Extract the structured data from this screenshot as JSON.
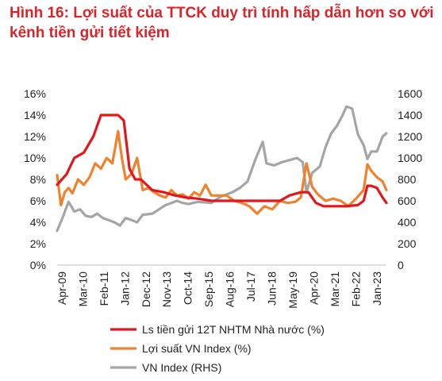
{
  "title_line1": "Hình 16: Lợi suất của TTCK duy trì tính hấp dẫn hơn so với",
  "title_line2": "kênh tiền gửi tiết kiệm",
  "chart_data": {
    "type": "line",
    "title": "Hình 16: Lợi suất của TTCK duy trì tính hấp dẫn hơn so với kênh tiền gửi tiết kiệm",
    "x_tick_labels": [
      "Apr-09",
      "Mar-10",
      "Feb-11",
      "Jan-12",
      "Dec-12",
      "Nov-13",
      "Oct-14",
      "Sep-15",
      "Aug-16",
      "Jul-17",
      "Jun-18",
      "May-19",
      "Apr-20",
      "Mar-21",
      "Feb-22",
      "Jan-23"
    ],
    "x_range": [
      "2009-04",
      "2023-09"
    ],
    "y_left": {
      "ylim": [
        0,
        16
      ],
      "ticks": [
        "0%",
        "2%",
        "4%",
        "6%",
        "8%",
        "10%",
        "12%",
        "14%",
        "16%"
      ]
    },
    "y_right": {
      "ylim": [
        0,
        1600
      ],
      "ticks": [
        "0",
        "200",
        "400",
        "600",
        "800",
        "1000",
        "1200",
        "1400",
        "1600"
      ]
    },
    "grid": false,
    "legend_position": "bottom",
    "series": [
      {
        "name": "Ls tiền gửi 12T NHTM Nhà nước (%)",
        "color": "#e3161b",
        "axis": "left",
        "x": [
          "2009-04",
          "2009-09",
          "2010-01",
          "2010-06",
          "2010-11",
          "2011-03",
          "2011-06",
          "2011-12",
          "2012-03",
          "2012-06",
          "2012-09",
          "2012-12",
          "2013-06",
          "2013-12",
          "2014-06",
          "2014-12",
          "2015-06",
          "2016-01",
          "2016-06",
          "2017-01",
          "2017-06",
          "2018-01",
          "2018-06",
          "2019-01",
          "2019-06",
          "2019-12",
          "2020-04",
          "2020-08",
          "2020-12",
          "2021-06",
          "2021-12",
          "2022-06",
          "2022-09",
          "2022-11",
          "2023-01",
          "2023-04",
          "2023-07",
          "2023-09"
        ],
        "values": [
          7.5,
          8.5,
          10.0,
          10.5,
          12.0,
          14.0,
          14.0,
          14.0,
          13.5,
          9.0,
          8.0,
          8.0,
          7.0,
          6.8,
          6.5,
          6.3,
          6.2,
          6.0,
          6.0,
          6.0,
          6.0,
          6.0,
          6.0,
          6.0,
          6.5,
          6.8,
          6.8,
          5.8,
          5.5,
          5.5,
          5.5,
          5.6,
          6.0,
          7.4,
          7.4,
          7.2,
          6.3,
          5.8
        ]
      },
      {
        "name": "Lợi suất VN Index (%)",
        "color": "#f0822d",
        "axis": "left",
        "x": [
          "2009-04",
          "2009-06",
          "2009-08",
          "2009-10",
          "2009-12",
          "2010-03",
          "2010-06",
          "2010-09",
          "2010-12",
          "2011-03",
          "2011-06",
          "2011-09",
          "2011-12",
          "2012-02",
          "2012-04",
          "2012-07",
          "2012-10",
          "2013-01",
          "2013-04",
          "2013-07",
          "2013-10",
          "2014-01",
          "2014-04",
          "2014-07",
          "2014-10",
          "2015-01",
          "2015-04",
          "2015-07",
          "2015-10",
          "2016-01",
          "2016-05",
          "2016-09",
          "2017-01",
          "2017-05",
          "2017-09",
          "2018-01",
          "2018-05",
          "2018-09",
          "2019-01",
          "2019-05",
          "2019-09",
          "2019-12",
          "2020-03",
          "2020-06",
          "2020-09",
          "2021-01",
          "2021-05",
          "2021-09",
          "2022-01",
          "2022-05",
          "2022-09",
          "2022-11",
          "2023-01",
          "2023-04",
          "2023-07",
          "2023-09"
        ],
        "values": [
          8.4,
          5.6,
          6.8,
          7.2,
          6.7,
          8.0,
          7.5,
          8.2,
          9.5,
          9.0,
          10.0,
          9.5,
          12.5,
          10.0,
          8.0,
          8.5,
          10.0,
          7.0,
          7.2,
          6.8,
          6.5,
          6.3,
          7.0,
          6.5,
          6.6,
          6.2,
          6.8,
          6.5,
          7.5,
          6.5,
          6.5,
          6.5,
          6.0,
          5.8,
          5.5,
          4.8,
          5.5,
          5.2,
          6.0,
          5.8,
          5.9,
          6.3,
          9.5,
          7.3,
          6.6,
          6.0,
          6.2,
          6.0,
          5.5,
          6.2,
          7.0,
          9.4,
          8.8,
          8.2,
          7.8,
          7.0
        ]
      },
      {
        "name": "VN Index (RHS)",
        "color": "#a5a5a5",
        "axis": "right",
        "x": [
          "2009-04",
          "2009-07",
          "2009-10",
          "2010-01",
          "2010-04",
          "2010-07",
          "2010-10",
          "2011-01",
          "2011-04",
          "2011-07",
          "2011-10",
          "2012-01",
          "2012-04",
          "2012-07",
          "2012-10",
          "2013-01",
          "2013-06",
          "2014-01",
          "2014-04",
          "2014-07",
          "2014-10",
          "2015-01",
          "2015-06",
          "2016-01",
          "2016-06",
          "2016-12",
          "2017-04",
          "2017-08",
          "2017-12",
          "2018-04",
          "2018-06",
          "2018-10",
          "2019-02",
          "2019-06",
          "2019-10",
          "2020-01",
          "2020-03",
          "2020-06",
          "2020-10",
          "2021-01",
          "2021-04",
          "2021-07",
          "2021-10",
          "2021-12",
          "2022-03",
          "2022-06",
          "2022-09",
          "2022-11",
          "2023-01",
          "2023-04",
          "2023-07",
          "2023-09"
        ],
        "values": [
          320,
          450,
          590,
          500,
          520,
          460,
          450,
          480,
          440,
          420,
          400,
          370,
          440,
          420,
          400,
          470,
          480,
          560,
          580,
          600,
          580,
          570,
          590,
          580,
          640,
          680,
          720,
          780,
          980,
          1150,
          950,
          930,
          960,
          980,
          1000,
          960,
          680,
          860,
          920,
          1100,
          1230,
          1300,
          1400,
          1480,
          1460,
          1220,
          1120,
          990,
          1060,
          1060,
          1200,
          1230
        ]
      }
    ]
  }
}
